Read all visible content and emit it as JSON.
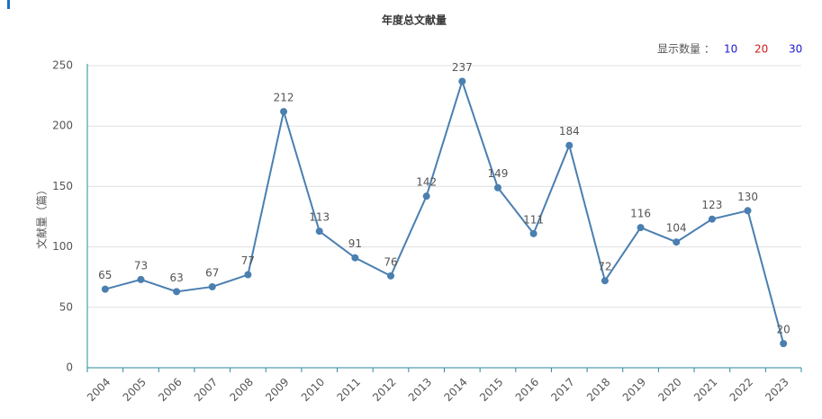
{
  "chart_data": {
    "type": "line",
    "title": "年度总文献量",
    "y_label": "文献量（篇）",
    "categories": [
      "2004",
      "2005",
      "2006",
      "2007",
      "2008",
      "2009",
      "2010",
      "2011",
      "2012",
      "2013",
      "2014",
      "2015",
      "2016",
      "2017",
      "2018",
      "2019",
      "2020",
      "2021",
      "2022",
      "2023"
    ],
    "values": [
      65,
      73,
      63,
      67,
      77,
      212,
      113,
      91,
      76,
      142,
      237,
      149,
      111,
      184,
      72,
      116,
      104,
      123,
      130,
      20
    ],
    "color": "#4a7fb0",
    "ylim": [
      0,
      250
    ],
    "yticks": [
      0,
      50,
      100,
      150,
      200,
      250
    ],
    "grid": true
  },
  "display_count": {
    "label": "显示数量 ：",
    "options": [
      "10",
      "20",
      "30"
    ]
  }
}
